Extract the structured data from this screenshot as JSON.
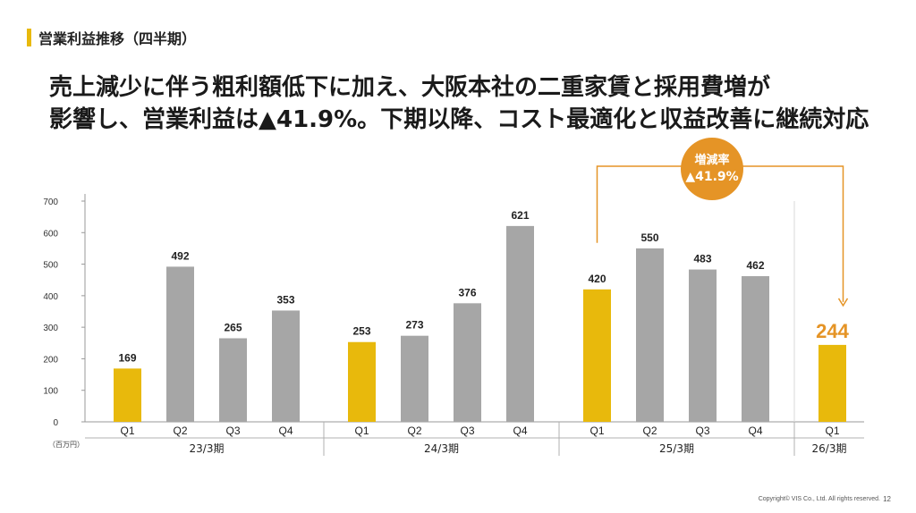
{
  "section": {
    "title": "営業利益推移（四半期）"
  },
  "headline": {
    "line1": "売上減少に伴う粗利額低下に加え、大阪本社の二重家賃と採用費増が",
    "line2": "影響し、営業利益は▲41.9%。下期以降、コスト最適化と収益改善に継続対応"
  },
  "callout": {
    "line1": "増減率",
    "line2": "▲41.9%"
  },
  "footer": {
    "copyright": "Copyright© VIS Co., Ltd. All rights reserved.",
    "page": "12"
  },
  "colors": {
    "highlight": "#e8b90c",
    "bar": "#a6a6a6",
    "accent": "#e59426"
  },
  "chart_data": {
    "type": "bar",
    "unit_label": "（百万円）",
    "ylim": [
      0,
      700
    ],
    "yticks": [
      0,
      100,
      200,
      300,
      400,
      500,
      600,
      700
    ],
    "groups": [
      {
        "label": "23/3期",
        "categories": [
          "Q1",
          "Q2",
          "Q3",
          "Q4"
        ],
        "values": [
          169,
          492,
          265,
          353
        ]
      },
      {
        "label": "24/3期",
        "categories": [
          "Q1",
          "Q2",
          "Q3",
          "Q4"
        ],
        "values": [
          253,
          273,
          376,
          621
        ]
      },
      {
        "label": "25/3期",
        "categories": [
          "Q1",
          "Q2",
          "Q3",
          "Q4"
        ],
        "values": [
          420,
          550,
          483,
          462
        ]
      },
      {
        "label": "26/3期",
        "categories": [
          "Q1"
        ],
        "values": [
          244
        ]
      }
    ],
    "highlight_category": "Q1",
    "emphasized_value": 244
  }
}
